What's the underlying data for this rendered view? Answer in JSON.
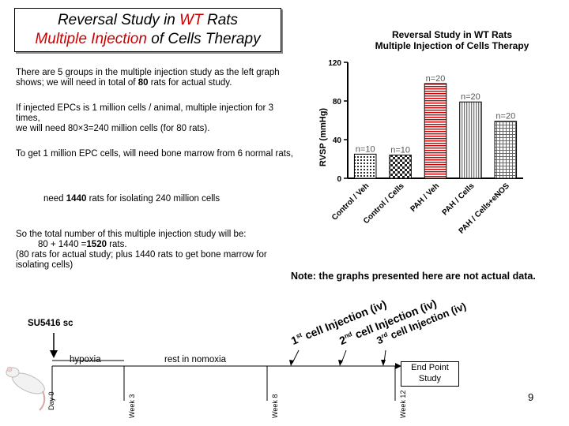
{
  "title": {
    "line1": {
      "a": "Reversal Study in ",
      "b": "WT",
      "c": " Rats"
    },
    "line2": {
      "a": "Multiple Injection",
      "b": " of Cells Therapy"
    }
  },
  "paragraphs": {
    "p1": {
      "a": "There are 5 groups in the multiple injection study as the left graph shows; we will need in total of ",
      "b": "80",
      "c": " rats for actual study."
    },
    "p2": {
      "line1": "If injected EPCs  is 1 million cells / animal, multiple injection for 3 times,",
      "line2": "we will need 80×3=240 million cells (for 80 rats)."
    },
    "p3": "To get 1 million EPC cells, will need bone marrow from 6 normal rats,",
    "p4": {
      "a": "need ",
      "b": "1440",
      "c": " rats for isolating 240 million cells"
    },
    "p5": {
      "line1": "So the total number of this multiple injection study will be:",
      "line2a": "80 + 1440 =",
      "line2b": "1520",
      "line2c": " rats.",
      "line3": "(80 rats for actual study; plus 1440 rats to get bone marrow for isolating cells)"
    }
  },
  "chart_data": {
    "type": "bar",
    "title": "Reversal Study in WT Rats",
    "subtitle": "Multiple Injection of Cells Therapy",
    "ylabel": "RVSP (mmHg)",
    "ylim": [
      0,
      120
    ],
    "yticks": [
      0,
      40,
      80,
      120
    ],
    "categories": [
      "Control / Veh",
      "Control / Cells",
      "PAH / Veh",
      "PAH / Cells",
      "PAH / Cells+eNOS"
    ],
    "values": [
      25,
      24,
      98,
      79,
      59
    ],
    "data_labels": [
      "n=10",
      "n=10",
      "n=20",
      "n=20",
      "n=20"
    ],
    "patterns": [
      "dots",
      "checker",
      "hlines",
      "vlines",
      "grid"
    ]
  },
  "note": "Note: the graphs presented here are not actual data.",
  "timeline": {
    "sugen": "SU5416 sc",
    "hypoxia": "hypoxia",
    "normoxia": "rest in nomoxia",
    "end": {
      "line1": "End Point",
      "line2": "Study"
    },
    "weeks": [
      "Day 0",
      "Week 3",
      "Week 8",
      "Week 12"
    ],
    "injections": [
      {
        "ord": "1",
        "sup": "st",
        "text": " cell Injection (iv)"
      },
      {
        "ord": "2",
        "sup": "nd",
        "text": " cell Injection (iv)"
      },
      {
        "ord": "3",
        "sup": "rd",
        "text": " cell  Injection (iv)"
      }
    ]
  },
  "page_number": "9"
}
